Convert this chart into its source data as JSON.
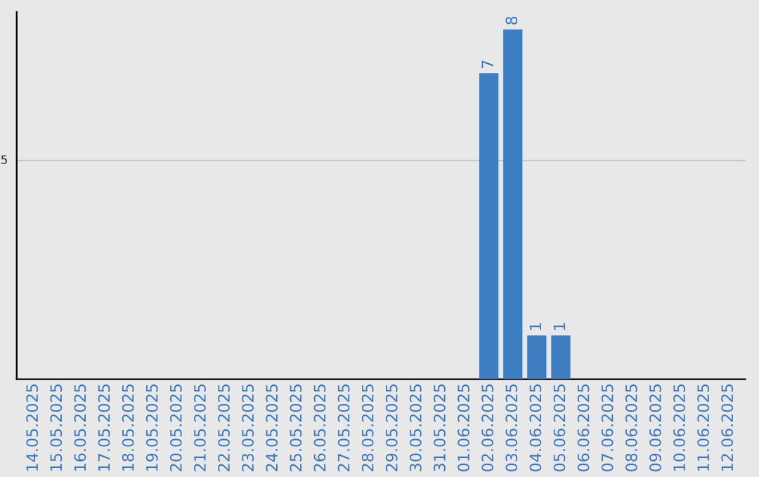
{
  "chart_data": {
    "type": "bar",
    "categories": [
      "14.05.2025",
      "15.05.2025",
      "16.05.2025",
      "17.05.2025",
      "18.05.2025",
      "19.05.2025",
      "20.05.2025",
      "21.05.2025",
      "22.05.2025",
      "23.05.2025",
      "24.05.2025",
      "25.05.2025",
      "26.05.2025",
      "27.05.2025",
      "28.05.2025",
      "29.05.2025",
      "30.05.2025",
      "31.05.2025",
      "01.06.2025",
      "02.06.2025",
      "03.06.2025",
      "04.06.2025",
      "05.06.2025",
      "06.06.2025",
      "07.06.2025",
      "08.06.2025",
      "09.06.2025",
      "10.06.2025",
      "11.06.2025",
      "12.06.2025"
    ],
    "values": [
      null,
      null,
      null,
      null,
      null,
      null,
      null,
      null,
      null,
      null,
      null,
      null,
      null,
      null,
      null,
      null,
      null,
      null,
      null,
      7,
      8,
      1,
      1,
      null,
      null,
      null,
      null,
      null,
      null,
      null
    ],
    "value_labels": [
      null,
      null,
      null,
      null,
      null,
      null,
      null,
      null,
      null,
      null,
      null,
      null,
      null,
      null,
      null,
      null,
      null,
      null,
      null,
      "7",
      "8",
      "1",
      "1",
      null,
      null,
      null,
      null,
      null,
      null,
      null
    ],
    "color": "#3d7dc2",
    "ylim": [
      0,
      8.4
    ],
    "ref_lines": [
      {
        "axis": "y",
        "value": 5,
        "label": "5",
        "color": "#c8c8c8"
      }
    ]
  }
}
